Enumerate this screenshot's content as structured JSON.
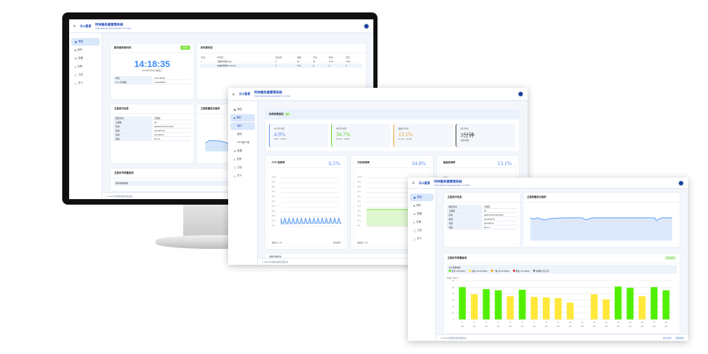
{
  "app": {
    "logo": "北斗星通",
    "title": "时钟服务器管理系统",
    "subtitle": "TIME SERVER MANAGEMENT SYSTEM",
    "footer": "© 2025 时钟服务器管理系统"
  },
  "nav": [
    "概览",
    "授时",
    "配置",
    "告警",
    "日志",
    "关于"
  ],
  "subnav": [
    "端口",
    "服务",
    "NTP客户端"
  ],
  "screen1": {
    "clock_card": {
      "title": "服务器系统时间",
      "badge": "已同步",
      "time": "14:18:35",
      "date": "2025年3月5日 星期三",
      "rows": [
        [
          "时区",
          "UTC+08:00"
        ],
        [
          "Unix 时间戳",
          "1741155515"
        ]
      ]
    },
    "ref_card": {
      "title": "参考源状态",
      "headers": [
        "状态",
        "参考源",
        "优先级",
        "偏移",
        "可达",
        "轮询",
        "延迟"
      ],
      "rows": [
        [
          "•",
          "卫星时间源 (ref)",
          "0",
          "10",
          "15",
          "1773",
          "1570"
        ],
        [
          "",
          "本地时钟源 (LOCAL)",
          "1",
          "750",
          "6",
          "3",
          "6"
        ]
      ]
    },
    "gnss_card": {
      "title": "卫星运行信息",
      "rows": [
        [
          "锁定状态",
          "已锁定"
        ],
        [
          "卫星数",
          "18"
        ],
        [
          "时间",
          "2025-03-05 09:18:35"
        ],
        [
          "经度",
          "116.2547°E"
        ],
        [
          "纬度",
          "40.0784°N"
        ],
        [
          "海拔",
          "52.3 m"
        ]
      ]
    },
    "trend_title": "卫星数量变化趋势",
    "signal_title": "卫星信号质量监测",
    "signal_sub": "信号质量等级:"
  },
  "screen2": {
    "monitor_title": "系统资源监控",
    "monitor_badge": "运行",
    "stats": [
      {
        "label": "CPU平均值",
        "value": "4.9%",
        "sub": "0.5% - 19.2%",
        "color": "#5b8df0"
      },
      {
        "label": "内存平均值",
        "value": "34.7%",
        "sub": "34.6% - 34.8%",
        "color": "#5fd32a"
      },
      {
        "label": "磁盘平均值",
        "value": "13.1%",
        "sub": "13.1% - 13.1%",
        "color": "#f0a030"
      },
      {
        "label": "运行时长",
        "value": "3分钟",
        "sub": "采样周期",
        "color": "#333"
      }
    ],
    "charts": [
      {
        "title": "CPU 使用率",
        "value": "0.5%",
        "legend": "数据点: 120",
        "action": "自动刷新"
      },
      {
        "title": "内存使用率",
        "value": "34.8%",
        "legend": "数据点: 120"
      },
      {
        "title": "磁盘使用率",
        "value": "13.1%"
      }
    ],
    "yticks": [
      "100%",
      "90%",
      "80%",
      "70%",
      "60%",
      "50%",
      "40%",
      "30%",
      "20%",
      "10%",
      "0%"
    ],
    "bottom_title": "当前系统状态"
  },
  "screen3": {
    "gnss_title": "卫星运行信息",
    "trend_title": "卫星数量变化趋势",
    "trend_yticks": [
      "30颗",
      "25颗",
      "20颗",
      "15颗",
      "10颗",
      "5颗",
      "0颗"
    ],
    "signal_title": "卫星信号质量监测",
    "signal_badge": "实时监测",
    "legend_title": "信号质量等级:",
    "legend": [
      {
        "label": "优秀 (≥45 dBHz)",
        "color": "#52f000"
      },
      {
        "label": "良好 (35-45 dBHz)",
        "color": "#ffe83a"
      },
      {
        "label": "一般 (25-35 dBHz)",
        "color": "#f5a623"
      },
      {
        "label": "较差 (<25 dBHz)",
        "color": "#e53935"
      },
      {
        "label": "未跟踪 (无信号)",
        "color": "#888888"
      }
    ],
    "footer_links": [
      "技术支持",
      "使用帮助"
    ]
  },
  "chart_data": {
    "type": "bar",
    "ylabel": "信噪比 (dBHz)",
    "ylim": [
      0,
      60
    ],
    "yticks": [
      0,
      10,
      20,
      30,
      40,
      50,
      60
    ],
    "categories": [
      "1",
      "2",
      "3",
      "4",
      "5",
      "6",
      "7",
      "8",
      "9",
      "10",
      "11",
      "12",
      "13",
      "14",
      "15",
      "16",
      "17",
      "18"
    ],
    "sublabels": [
      "GN",
      "GN",
      "GN",
      "GN",
      "GN",
      "GN",
      "GN",
      "GN",
      "GN",
      "GN",
      "GN",
      "GN",
      "GN",
      "GN",
      "GN",
      "GN",
      "GN",
      "GN"
    ],
    "values": [
      50,
      39,
      47,
      45,
      36,
      46,
      35,
      34,
      33,
      26,
      0,
      39,
      31,
      51,
      49,
      36,
      50,
      45
    ]
  }
}
